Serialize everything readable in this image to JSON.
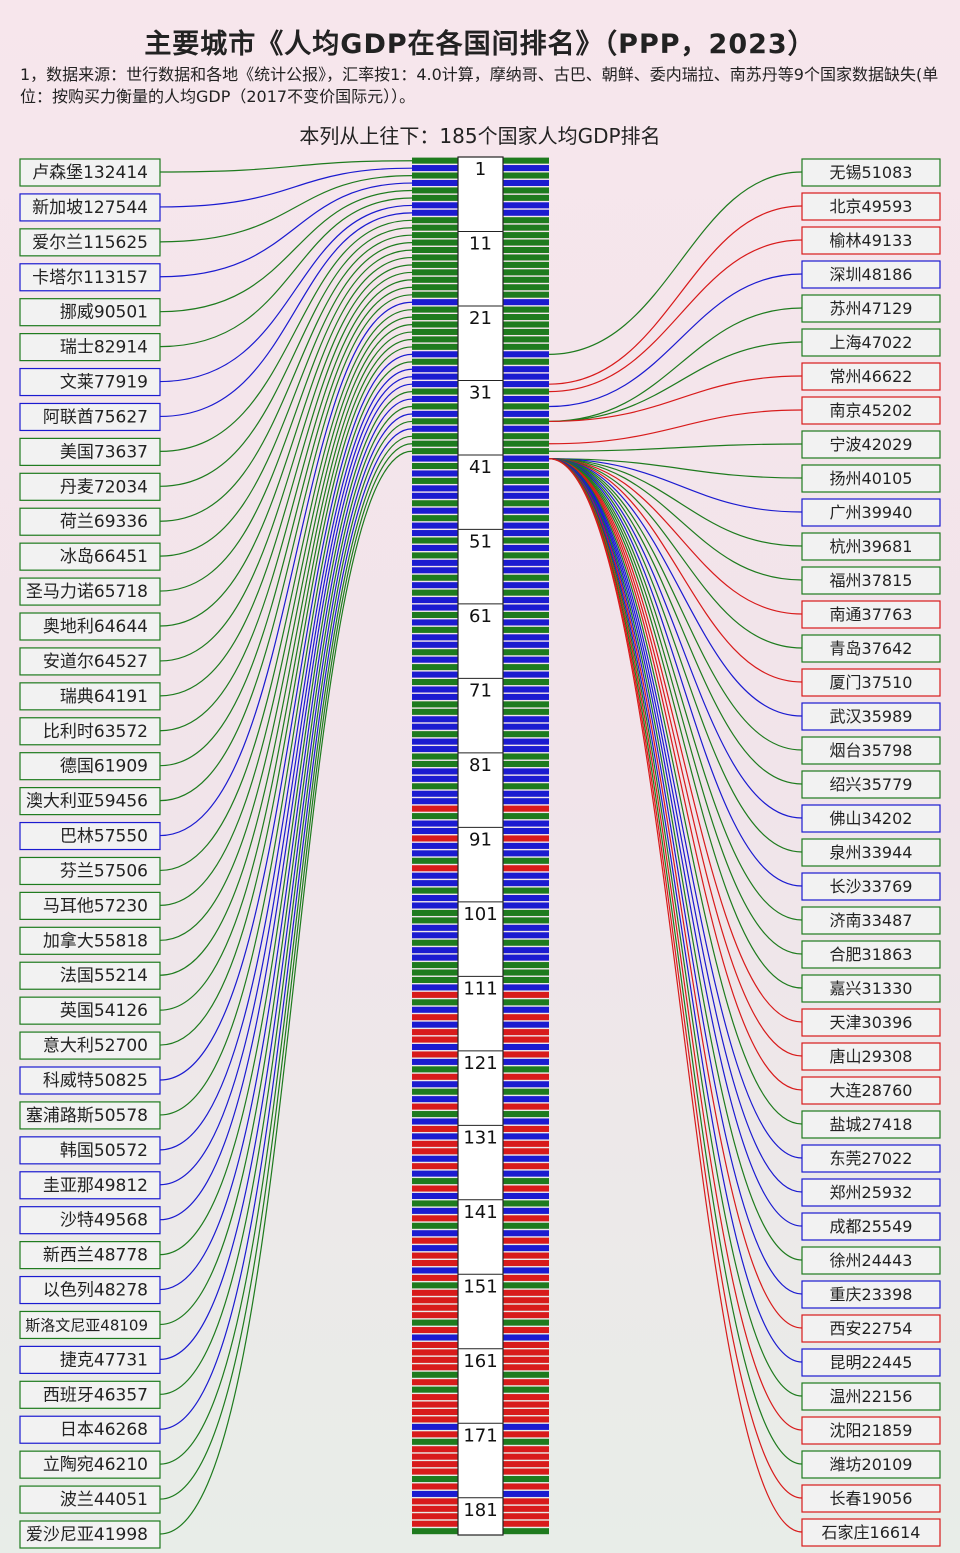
{
  "title": "主要城市《人均GDP在各国间排名》（PPP，2023）",
  "note": "1，数据来源：世行数据和各地《统计公报》，汇率按1：4.0计算，摩纳哥、古巴、朝鲜、委内瑞拉、南苏丹等9个国家数据缺失(单位：按购买力衡量的人均GDP（2017不变价国际元））。",
  "subtitle": "本列从上往下：185个国家人均GDP排名",
  "colors": {
    "green": "#1e7b1e",
    "blue": "#1b1bd0",
    "red": "#d81b1b"
  },
  "chart_data": {
    "type": "table",
    "rank_total": 185,
    "rank_ticks": [
      1,
      11,
      21,
      31,
      41,
      51,
      61,
      71,
      81,
      91,
      101,
      111,
      121,
      131,
      141,
      151,
      161,
      171,
      181
    ],
    "countries": [
      {
        "label": "卢森堡132414",
        "value": 132414,
        "color": "green"
      },
      {
        "label": "新加坡127544",
        "value": 127544,
        "color": "blue"
      },
      {
        "label": "爱尔兰115625",
        "value": 115625,
        "color": "green"
      },
      {
        "label": "卡塔尔113157",
        "value": 113157,
        "color": "blue"
      },
      {
        "label": "挪威90501",
        "value": 90501,
        "color": "green"
      },
      {
        "label": "瑞士82914",
        "value": 82914,
        "color": "green"
      },
      {
        "label": "文莱77919",
        "value": 77919,
        "color": "blue"
      },
      {
        "label": "阿联酋75627",
        "value": 75627,
        "color": "blue"
      },
      {
        "label": "美国73637",
        "value": 73637,
        "color": "green"
      },
      {
        "label": "丹麦72034",
        "value": 72034,
        "color": "green"
      },
      {
        "label": "荷兰69336",
        "value": 69336,
        "color": "green"
      },
      {
        "label": "冰岛66451",
        "value": 66451,
        "color": "green"
      },
      {
        "label": "圣马力诺65718",
        "value": 65718,
        "color": "green"
      },
      {
        "label": "奥地利64644",
        "value": 64644,
        "color": "green"
      },
      {
        "label": "安道尔64527",
        "value": 64527,
        "color": "green"
      },
      {
        "label": "瑞典64191",
        "value": 64191,
        "color": "green"
      },
      {
        "label": "比利时63572",
        "value": 63572,
        "color": "green"
      },
      {
        "label": "德国61909",
        "value": 61909,
        "color": "green"
      },
      {
        "label": "澳大利亚59456",
        "value": 59456,
        "color": "green"
      },
      {
        "label": "巴林57550",
        "value": 57550,
        "color": "blue"
      },
      {
        "label": "芬兰57506",
        "value": 57506,
        "color": "green"
      },
      {
        "label": "马耳他57230",
        "value": 57230,
        "color": "green"
      },
      {
        "label": "加拿大55818",
        "value": 55818,
        "color": "green"
      },
      {
        "label": "法国55214",
        "value": 55214,
        "color": "green"
      },
      {
        "label": "英国54126",
        "value": 54126,
        "color": "green"
      },
      {
        "label": "意大利52700",
        "value": 52700,
        "color": "green"
      },
      {
        "label": "科威特50825",
        "value": 50825,
        "color": "blue"
      },
      {
        "label": "塞浦路斯50578",
        "value": 50578,
        "color": "green"
      },
      {
        "label": "韩国50572",
        "value": 50572,
        "color": "blue"
      },
      {
        "label": "圭亚那49812",
        "value": 49812,
        "color": "blue"
      },
      {
        "label": "沙特49568",
        "value": 49568,
        "color": "blue"
      },
      {
        "label": "新西兰48778",
        "value": 48778,
        "color": "green"
      },
      {
        "label": "以色列48278",
        "value": 48278,
        "color": "blue"
      },
      {
        "label": "斯洛文尼亚48109",
        "value": 48109,
        "color": "green"
      },
      {
        "label": "捷克47731",
        "value": 47731,
        "color": "blue"
      },
      {
        "label": "西班牙46357",
        "value": 46357,
        "color": "green"
      },
      {
        "label": "日本46268",
        "value": 46268,
        "color": "blue"
      },
      {
        "label": "立陶宛46210",
        "value": 46210,
        "color": "green"
      },
      {
        "label": "波兰44051",
        "value": 44051,
        "color": "green"
      },
      {
        "label": "爱沙尼亚41998",
        "value": 41998,
        "color": "green"
      }
    ],
    "cities": [
      {
        "label": "无锡51083",
        "value": 51083,
        "color": "green"
      },
      {
        "label": "北京49593",
        "value": 49593,
        "color": "red"
      },
      {
        "label": "榆林49133",
        "value": 49133,
        "color": "red"
      },
      {
        "label": "深圳48186",
        "value": 48186,
        "color": "blue"
      },
      {
        "label": "苏州47129",
        "value": 47129,
        "color": "green"
      },
      {
        "label": "上海47022",
        "value": 47022,
        "color": "green"
      },
      {
        "label": "常州46622",
        "value": 46622,
        "color": "red"
      },
      {
        "label": "南京45202",
        "value": 45202,
        "color": "red"
      },
      {
        "label": "宁波42029",
        "value": 42029,
        "color": "green"
      },
      {
        "label": "扬州40105",
        "value": 40105,
        "color": "green"
      },
      {
        "label": "广州39940",
        "value": 39940,
        "color": "blue"
      },
      {
        "label": "杭州39681",
        "value": 39681,
        "color": "green"
      },
      {
        "label": "福州37815",
        "value": 37815,
        "color": "green"
      },
      {
        "label": "南通37763",
        "value": 37763,
        "color": "red"
      },
      {
        "label": "青岛37642",
        "value": 37642,
        "color": "green"
      },
      {
        "label": "厦门37510",
        "value": 37510,
        "color": "red"
      },
      {
        "label": "武汉35989",
        "value": 35989,
        "color": "blue"
      },
      {
        "label": "烟台35798",
        "value": 35798,
        "color": "green"
      },
      {
        "label": "绍兴35779",
        "value": 35779,
        "color": "green"
      },
      {
        "label": "佛山34202",
        "value": 34202,
        "color": "blue"
      },
      {
        "label": "泉州33944",
        "value": 33944,
        "color": "green"
      },
      {
        "label": "长沙33769",
        "value": 33769,
        "color": "blue"
      },
      {
        "label": "济南33487",
        "value": 33487,
        "color": "green"
      },
      {
        "label": "合肥31863",
        "value": 31863,
        "color": "green"
      },
      {
        "label": "嘉兴31330",
        "value": 31330,
        "color": "green"
      },
      {
        "label": "天津30396",
        "value": 30396,
        "color": "red"
      },
      {
        "label": "唐山29308",
        "value": 29308,
        "color": "red"
      },
      {
        "label": "大连28760",
        "value": 28760,
        "color": "red"
      },
      {
        "label": "盐城27418",
        "value": 27418,
        "color": "green"
      },
      {
        "label": "东莞27022",
        "value": 27022,
        "color": "blue"
      },
      {
        "label": "郑州25932",
        "value": 25932,
        "color": "blue"
      },
      {
        "label": "成都25549",
        "value": 25549,
        "color": "blue"
      },
      {
        "label": "徐州24443",
        "value": 24443,
        "color": "green"
      },
      {
        "label": "重庆23398",
        "value": 23398,
        "color": "blue"
      },
      {
        "label": "西安22754",
        "value": 22754,
        "color": "red"
      },
      {
        "label": "昆明22445",
        "value": 22445,
        "color": "blue"
      },
      {
        "label": "温州22156",
        "value": 22156,
        "color": "green"
      },
      {
        "label": "沈阳21859",
        "value": 21859,
        "color": "red"
      },
      {
        "label": "潍坊20109",
        "value": 20109,
        "color": "green"
      },
      {
        "label": "长春19056",
        "value": 19056,
        "color": "red"
      },
      {
        "label": "石家庄16614",
        "value": 16614,
        "color": "red"
      }
    ]
  }
}
